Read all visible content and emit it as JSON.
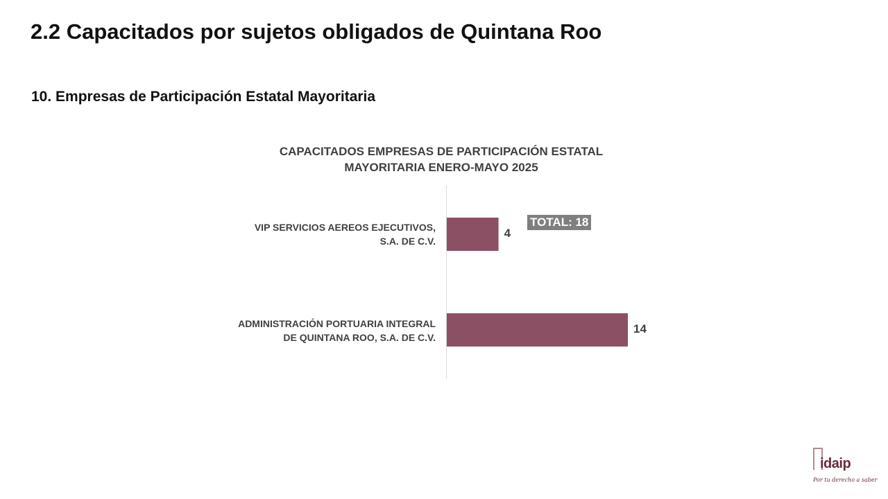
{
  "header": {
    "title": "2.2 Capacitados por sujetos obligados de Quintana Roo",
    "section": "10. Empresas de Participación Estatal Mayoritaria"
  },
  "chart_data": {
    "type": "bar",
    "orientation": "horizontal",
    "title_lines": [
      "CAPACITADOS EMPRESAS DE PARTICIPACIÓN ESTATAL",
      "MAYORITARIA ENERO-MAYO 2025"
    ],
    "categories": [
      [
        "VIP SERVICIOS AEREOS EJECUTIVOS,",
        "S.A. DE C.V."
      ],
      [
        "ADMINISTRACIÓN PORTUARIA INTEGRAL",
        "DE QUINTANA ROO, S.A. DE C.V."
      ]
    ],
    "values": [
      4,
      14
    ],
    "value_labels": [
      "4",
      "14"
    ],
    "xlim": [
      0,
      14
    ],
    "grid": false,
    "legend": "none",
    "bar_color": "#8b5063",
    "axis_color": "#d9d9d9",
    "total_label": "TOTAL: 18"
  },
  "logo": {
    "text": "idaip",
    "tagline": "Por tu derecho a saber"
  }
}
